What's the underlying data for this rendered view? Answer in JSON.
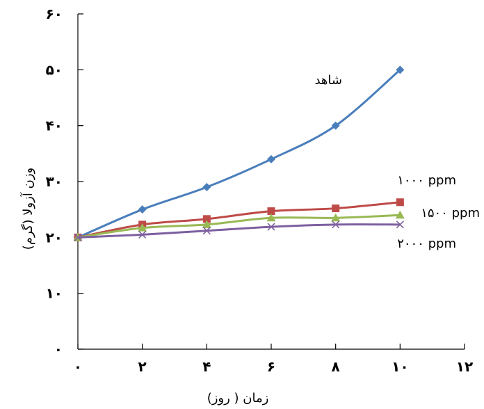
{
  "chart_data": {
    "type": "line",
    "title": "",
    "xlabel": "زمان ( روز)",
    "ylabel": "وزن آزولا (گرم)",
    "xlim": [
      0,
      12
    ],
    "ylim": [
      0,
      60
    ],
    "x_ticks": [
      0,
      2,
      4,
      6,
      8,
      10,
      12
    ],
    "x_tick_labels": [
      "۰",
      "۲",
      "۴",
      "۶",
      "۸",
      "۱۰",
      "۱۲"
    ],
    "y_ticks": [
      0,
      10,
      20,
      30,
      40,
      50,
      60
    ],
    "y_tick_labels": [
      "۰",
      "۱۰",
      "۲۰",
      "۳۰",
      "۴۰",
      "۵۰",
      "۶۰"
    ],
    "grid": false,
    "legend": "none",
    "x": [
      0,
      2,
      4,
      6,
      8,
      10
    ],
    "series": [
      {
        "name": "شاهد",
        "color": "#4a7ebb",
        "marker": "diamond",
        "values": [
          20,
          25,
          29,
          34,
          40,
          50
        ]
      },
      {
        "name": "۱۰۰۰ ppm",
        "color": "#be4b48",
        "marker": "square",
        "values": [
          20,
          22.3,
          23.3,
          24.7,
          25.2,
          26.3
        ]
      },
      {
        "name": "۱۵۰۰ ppm",
        "color": "#98b954",
        "marker": "triangle",
        "values": [
          20,
          21.7,
          22.3,
          23.5,
          23.5,
          24
        ]
      },
      {
        "name": "۲۰۰۰ ppm",
        "color": "#7d60a0",
        "marker": "x",
        "values": [
          20,
          20.5,
          21.2,
          21.9,
          22.3,
          22.3
        ]
      }
    ]
  }
}
